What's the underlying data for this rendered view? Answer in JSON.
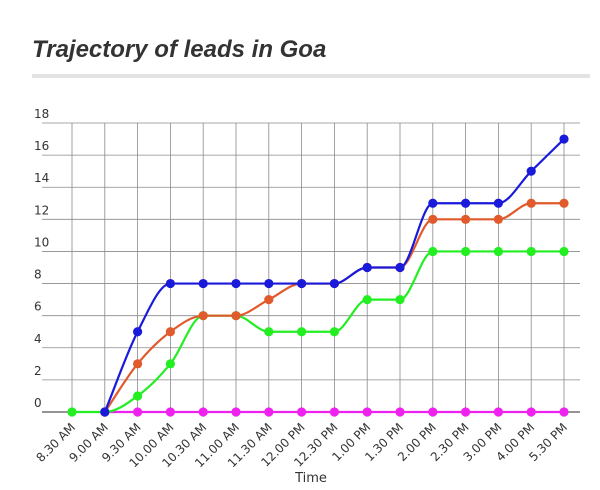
{
  "chart_data": {
    "type": "line",
    "title": "Trajectory of leads in Goa",
    "xlabel": "Time",
    "ylabel": "",
    "ylim": [
      0,
      18
    ],
    "yticks": [
      0,
      2,
      4,
      6,
      8,
      10,
      12,
      14,
      16,
      18
    ],
    "grid": true,
    "categories": [
      "8.30 AM",
      "9.00 AM",
      "9.30 AM",
      "10.00 AM",
      "10.30 AM",
      "11.00 AM",
      "11.30 AM",
      "12.00 PM",
      "12.30 PM",
      "1.00 PM",
      "1.30 PM",
      "2.00 PM",
      "2.30 PM",
      "3.00 PM",
      "4.00 PM",
      "5.30 PM"
    ],
    "series": [
      {
        "color": "#1a1adb",
        "values": [
          null,
          0,
          5,
          8,
          8,
          8,
          8,
          8,
          8,
          9,
          9,
          13,
          13,
          13,
          15,
          17
        ]
      },
      {
        "color": "#e05a2b",
        "values": [
          null,
          0,
          3,
          5,
          6,
          6,
          7,
          8,
          8,
          9,
          9,
          12,
          12,
          12,
          13,
          13
        ]
      },
      {
        "color": "#22ee22",
        "values": [
          0,
          0,
          1,
          3,
          6,
          6,
          5,
          5,
          5,
          7,
          7,
          10,
          10,
          10,
          10,
          10
        ]
      },
      {
        "color": "#ee22ee",
        "values": [
          null,
          0,
          0,
          0,
          0,
          0,
          0,
          0,
          0,
          0,
          0,
          0,
          0,
          0,
          0,
          0
        ]
      }
    ]
  }
}
